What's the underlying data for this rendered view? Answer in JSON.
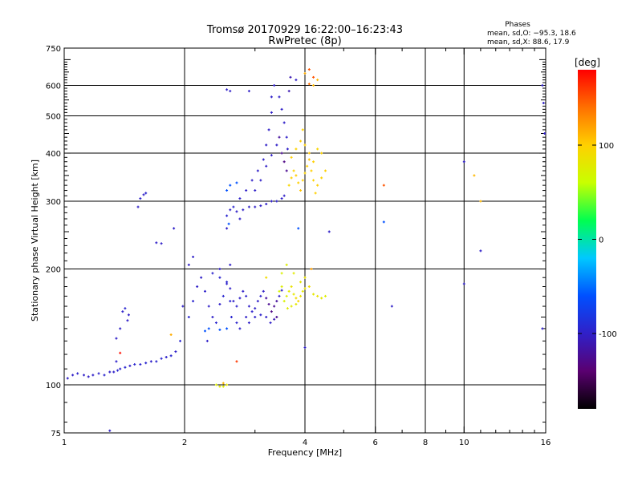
{
  "chart_data": {
    "type": "scatter",
    "title": "Tromsø 20170929 16:22:00–16:23:43",
    "subtitle": "RwPretec (8p)",
    "xlabel": "Frequency [MHz]",
    "ylabel": "Stationary phase Virtual Height [km]",
    "xscale": "log",
    "yscale": "log",
    "xlim": [
      1,
      16
    ],
    "ylim": [
      75,
      750
    ],
    "x_ticks": [
      1,
      2,
      4,
      6,
      8,
      10,
      16
    ],
    "x_tick_labels": [
      "1",
      "2",
      "4",
      "6",
      "8",
      "10",
      "16"
    ],
    "y_ticks": [
      75,
      100,
      200,
      300,
      400,
      500,
      600,
      750
    ],
    "y_tick_labels": [
      "75",
      "100",
      "200",
      "300",
      "400",
      "500",
      "600",
      "750"
    ],
    "grid": true,
    "stats": {
      "heading": "Phases",
      "line1": "mean, sd,O: −95.3, 18.6",
      "line2": "mean, sd,X:  88.6, 17.9"
    },
    "colorbar": {
      "label": "[deg]",
      "range": [
        -180,
        180
      ],
      "ticks": [
        100,
        0,
        -100
      ],
      "tick_labels": [
        "100",
        "0",
        "-100"
      ],
      "palette": [
        "#000000",
        "#5a0070",
        "#3020c8",
        "#0050ff",
        "#00c8ff",
        "#00ff50",
        "#c8ff00",
        "#ffd000",
        "#ff7000",
        "#ff0000"
      ]
    },
    "series": [
      {
        "points": [
          [
            1.02,
            104,
            -100
          ],
          [
            1.05,
            106,
            -100
          ],
          [
            1.08,
            107,
            -98
          ],
          [
            1.12,
            106,
            -100
          ],
          [
            1.15,
            105,
            -102
          ],
          [
            1.18,
            106,
            -100
          ],
          [
            1.22,
            107,
            -98
          ],
          [
            1.26,
            106,
            -96
          ],
          [
            1.3,
            108,
            -100
          ],
          [
            1.33,
            108,
            -100
          ],
          [
            1.36,
            109,
            -95
          ],
          [
            1.38,
            110,
            -97
          ],
          [
            1.42,
            111,
            -95
          ],
          [
            1.46,
            112,
            -100
          ],
          [
            1.5,
            113,
            -95
          ],
          [
            1.55,
            113,
            -97
          ],
          [
            1.6,
            114,
            -95
          ],
          [
            1.65,
            115,
            -100
          ],
          [
            1.7,
            115,
            -96
          ],
          [
            1.75,
            117,
            -95
          ],
          [
            1.8,
            118,
            -98
          ],
          [
            1.85,
            119,
            -95
          ],
          [
            1.9,
            122,
            -100
          ],
          [
            1.95,
            130,
            -95
          ],
          [
            1.35,
            115,
            -98
          ],
          [
            1.38,
            140,
            -100
          ],
          [
            1.4,
            155,
            -98
          ],
          [
            1.42,
            158,
            -95
          ],
          [
            1.45,
            152,
            -100
          ],
          [
            1.44,
            147,
            -100
          ],
          [
            1.35,
            132,
            -100
          ],
          [
            1.53,
            290,
            -100
          ],
          [
            1.55,
            305,
            -98
          ],
          [
            1.58,
            312,
            -100
          ],
          [
            1.6,
            315,
            -96
          ],
          [
            1.7,
            234,
            -100
          ],
          [
            1.75,
            233,
            -100
          ],
          [
            1.88,
            255,
            -100
          ],
          [
            2.05,
            150,
            -95
          ],
          [
            2.1,
            165,
            -95
          ],
          [
            2.15,
            180,
            -100
          ],
          [
            2.2,
            190,
            -100
          ],
          [
            2.25,
            175,
            -98
          ],
          [
            2.3,
            160,
            -100
          ],
          [
            2.35,
            150,
            -100
          ],
          [
            2.4,
            145,
            -96
          ],
          [
            2.45,
            162,
            -100
          ],
          [
            2.5,
            170,
            -95
          ],
          [
            2.55,
            185,
            -95
          ],
          [
            2.6,
            178,
            -100
          ],
          [
            2.65,
            165,
            -100
          ],
          [
            2.7,
            160,
            -98
          ],
          [
            2.75,
            168,
            -100
          ],
          [
            2.8,
            175,
            -100
          ],
          [
            2.85,
            170,
            -98
          ],
          [
            2.9,
            160,
            -100
          ],
          [
            2.95,
            155,
            -98
          ],
          [
            3.0,
            158,
            -100
          ],
          [
            3.05,
            165,
            -100
          ],
          [
            3.1,
            170,
            -98
          ],
          [
            3.15,
            175,
            -100
          ],
          [
            3.2,
            168,
            -120
          ],
          [
            3.25,
            162,
            -125
          ],
          [
            3.3,
            155,
            -130
          ],
          [
            3.35,
            160,
            -125
          ],
          [
            3.4,
            165,
            -120
          ],
          [
            3.45,
            170,
            -100
          ],
          [
            3.5,
            176,
            -100
          ],
          [
            2.05,
            205,
            -100
          ],
          [
            2.1,
            215,
            -100
          ],
          [
            1.98,
            160,
            -100
          ],
          [
            2.28,
            130,
            -100
          ],
          [
            2.45,
            200,
            -100
          ],
          [
            2.6,
            205,
            -100
          ],
          [
            2.35,
            195,
            -97
          ],
          [
            2.45,
            190,
            -96
          ],
          [
            2.55,
            183,
            -98
          ],
          [
            2.6,
            165,
            -95
          ],
          [
            2.62,
            150,
            -95
          ],
          [
            2.7,
            145,
            -97
          ],
          [
            2.75,
            140,
            -98
          ],
          [
            2.85,
            150,
            -100
          ],
          [
            2.9,
            145,
            -100
          ],
          [
            3.0,
            150,
            -98
          ],
          [
            3.1,
            152,
            -98
          ],
          [
            3.2,
            150,
            -100
          ],
          [
            3.28,
            145,
            -100
          ],
          [
            3.35,
            148,
            -110
          ],
          [
            3.4,
            150,
            -125
          ],
          [
            2.3,
            140,
            -60
          ],
          [
            2.25,
            138,
            -60
          ],
          [
            2.55,
            140,
            -60
          ],
          [
            2.4,
            100,
            75
          ],
          [
            2.45,
            99,
            80
          ],
          [
            2.5,
            99,
            75
          ],
          [
            2.55,
            100,
            80
          ],
          [
            2.6,
            285,
            -100
          ],
          [
            2.7,
            282,
            -100
          ],
          [
            2.8,
            285,
            -100
          ],
          [
            2.9,
            290,
            -100
          ],
          [
            3.0,
            290,
            -100
          ],
          [
            3.1,
            292,
            -100
          ],
          [
            3.2,
            295,
            -100
          ],
          [
            3.3,
            300,
            -100
          ],
          [
            3.4,
            300,
            -98
          ],
          [
            3.5,
            305,
            -100
          ],
          [
            3.55,
            310,
            -100
          ],
          [
            2.55,
            275,
            -95
          ],
          [
            2.65,
            290,
            -96
          ],
          [
            2.75,
            305,
            -98
          ],
          [
            2.85,
            320,
            -100
          ],
          [
            2.95,
            340,
            -100
          ],
          [
            3.05,
            360,
            -100
          ],
          [
            3.15,
            385,
            -100
          ],
          [
            3.2,
            420,
            -100
          ],
          [
            3.25,
            460,
            -100
          ],
          [
            3.3,
            510,
            -100
          ],
          [
            3.3,
            560,
            -100
          ],
          [
            3.35,
            600,
            -100
          ],
          [
            3.45,
            560,
            -100
          ],
          [
            3.5,
            520,
            -100
          ],
          [
            3.55,
            480,
            -100
          ],
          [
            3.6,
            440,
            -100
          ],
          [
            3.62,
            410,
            -100
          ],
          [
            3.65,
            580,
            -110
          ],
          [
            3.68,
            630,
            -110
          ],
          [
            3.0,
            320,
            -100
          ],
          [
            3.1,
            340,
            -100
          ],
          [
            3.2,
            370,
            -100
          ],
          [
            3.3,
            395,
            -100
          ],
          [
            3.4,
            420,
            -100
          ],
          [
            3.45,
            440,
            -120
          ],
          [
            3.5,
            400,
            -125
          ],
          [
            3.55,
            380,
            -130
          ],
          [
            3.6,
            360,
            -125
          ],
          [
            2.55,
            585,
            -100
          ],
          [
            2.6,
            580,
            -100
          ],
          [
            2.55,
            255,
            -100
          ],
          [
            2.75,
            270,
            -100
          ],
          [
            2.58,
            262,
            -60
          ],
          [
            2.6,
            330,
            -60
          ],
          [
            2.7,
            335,
            -60
          ],
          [
            2.55,
            320,
            -60
          ],
          [
            3.85,
            255,
            -60
          ],
          [
            6.3,
            265,
            -60
          ],
          [
            2.45,
            139,
            -60
          ],
          [
            4.0,
            125,
            -100
          ],
          [
            4.6,
            250,
            -100
          ],
          [
            6.6,
            160,
            -100
          ],
          [
            10.0,
            183,
            -100
          ],
          [
            10.0,
            380,
            -100
          ],
          [
            11.0,
            223,
            -100
          ],
          [
            15.7,
            600,
            -100
          ],
          [
            15.8,
            540,
            -100
          ],
          [
            15.9,
            450,
            -100
          ],
          [
            15.7,
            140,
            -100
          ],
          [
            1.3,
            76,
            -100
          ],
          [
            2.9,
            580,
            -100
          ],
          [
            3.8,
            620,
            -100
          ]
        ]
      },
      {
        "points": [
          [
            3.6,
            170,
            75
          ],
          [
            3.65,
            175,
            80
          ],
          [
            3.7,
            180,
            85
          ],
          [
            3.75,
            172,
            80
          ],
          [
            3.8,
            168,
            90
          ],
          [
            3.85,
            165,
            95
          ],
          [
            3.9,
            170,
            85
          ],
          [
            3.95,
            175,
            80
          ],
          [
            4.0,
            178,
            85
          ],
          [
            4.1,
            180,
            90
          ],
          [
            4.2,
            172,
            80
          ],
          [
            4.3,
            170,
            85
          ],
          [
            4.4,
            168,
            80
          ],
          [
            4.5,
            170,
            75
          ],
          [
            3.5,
            180,
            75
          ],
          [
            3.45,
            175,
            70
          ],
          [
            3.55,
            165,
            72
          ],
          [
            3.62,
            158,
            76
          ],
          [
            3.7,
            160,
            78
          ],
          [
            3.8,
            162,
            80
          ],
          [
            3.9,
            185,
            82
          ],
          [
            4.0,
            190,
            85
          ],
          [
            3.75,
            195,
            78
          ],
          [
            3.6,
            205,
            75
          ],
          [
            3.5,
            195,
            72
          ],
          [
            3.65,
            330,
            95
          ],
          [
            3.7,
            345,
            100
          ],
          [
            3.75,
            360,
            98
          ],
          [
            3.8,
            350,
            102
          ],
          [
            3.85,
            335,
            100
          ],
          [
            3.9,
            320,
            105
          ],
          [
            3.95,
            340,
            100
          ],
          [
            4.0,
            355,
            98
          ],
          [
            4.05,
            370,
            100
          ],
          [
            4.1,
            385,
            105
          ],
          [
            4.15,
            360,
            100
          ],
          [
            4.2,
            340,
            98
          ],
          [
            4.3,
            330,
            100
          ],
          [
            4.4,
            345,
            98
          ],
          [
            4.5,
            360,
            100
          ],
          [
            3.7,
            390,
            100
          ],
          [
            3.8,
            410,
            98
          ],
          [
            3.9,
            430,
            100
          ],
          [
            3.95,
            460,
            98
          ],
          [
            4.0,
            420,
            100
          ],
          [
            4.1,
            400,
            105
          ],
          [
            4.2,
            380,
            100
          ],
          [
            4.3,
            410,
            95
          ],
          [
            4.4,
            400,
            98
          ],
          [
            4.25,
            315,
            100
          ],
          [
            4.2,
            600,
            110
          ],
          [
            4.3,
            620,
            110
          ],
          [
            4.1,
            605,
            140
          ],
          [
            4.2,
            630,
            150
          ],
          [
            4.1,
            660,
            150
          ],
          [
            4.0,
            645,
            115
          ],
          [
            1.85,
            135,
            115
          ],
          [
            2.5,
            101,
            110
          ],
          [
            11.0,
            300,
            110
          ],
          [
            10.6,
            350,
            110
          ],
          [
            6.3,
            330,
            150
          ],
          [
            2.7,
            115,
            160
          ],
          [
            1.38,
            121,
            175
          ],
          [
            4.15,
            200,
            120
          ],
          [
            3.2,
            190,
            90
          ]
        ]
      }
    ]
  }
}
